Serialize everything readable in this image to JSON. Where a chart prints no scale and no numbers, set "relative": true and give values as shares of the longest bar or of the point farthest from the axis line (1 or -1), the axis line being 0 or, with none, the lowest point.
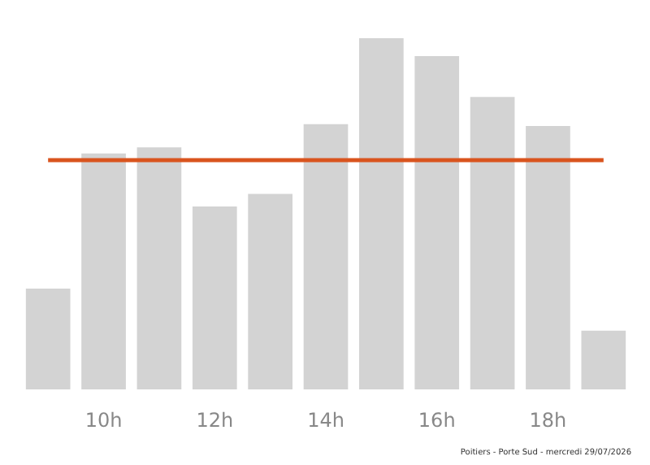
{
  "chart_data": {
    "type": "bar",
    "relative": true,
    "categories": [
      null,
      "10h",
      null,
      "12h",
      null,
      "14h",
      null,
      "16h",
      null,
      "18h",
      null
    ],
    "values": [
      0.287,
      0.672,
      0.689,
      0.521,
      0.557,
      0.755,
      1,
      0.949,
      0.833,
      0.75,
      0.167
    ],
    "color": "#d3d3d3",
    "ref_lines": [
      {
        "axis": "y",
        "value": 0.653,
        "color": "#d9541e"
      }
    ],
    "annotations": [
      "Poitiers - Porte Sud - mercredi 29/07/2026"
    ],
    "grid": false
  }
}
